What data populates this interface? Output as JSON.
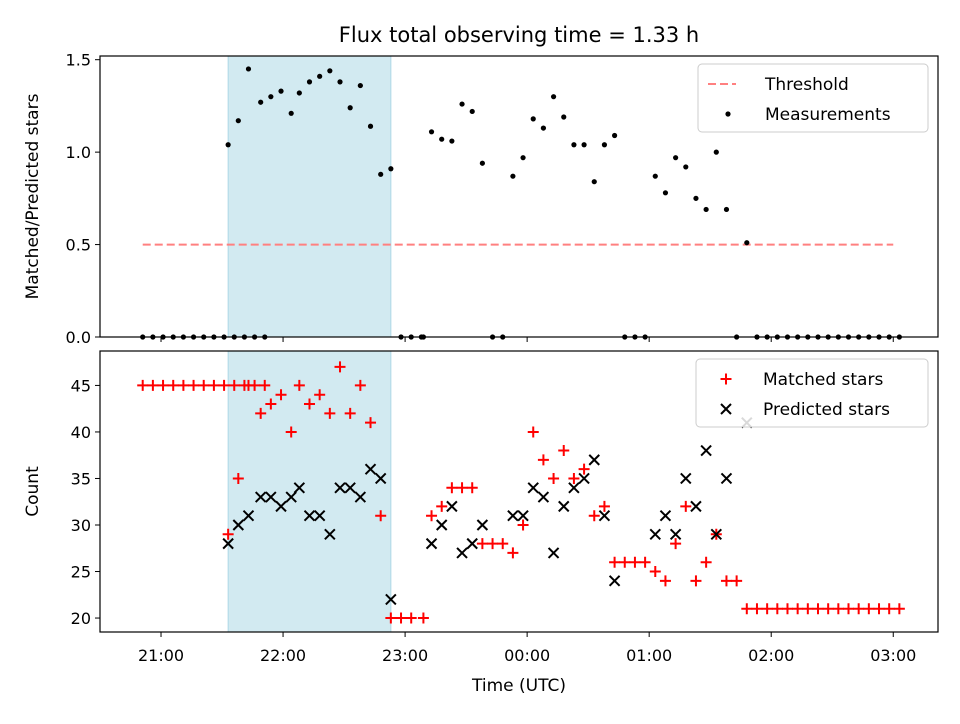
{
  "figure": {
    "title": "Flux total observing time = 1.33 h",
    "xlabel": "Time (UTC)"
  },
  "chart_data": [
    {
      "type": "scatter",
      "ylabel": "Matched/Predicted stars",
      "ylim": [
        0,
        1.52
      ],
      "yticks": [
        0.0,
        0.5,
        1.0,
        1.5
      ],
      "ytick_labels": [
        "0.0",
        "0.5",
        "1.0",
        "1.5"
      ],
      "xlim": [
        "20:30",
        "03:22"
      ],
      "xticks": [
        "21:00",
        "22:00",
        "23:00",
        "00:00",
        "01:00",
        "02:00",
        "03:00"
      ],
      "shaded_span": {
        "start": "21:33",
        "end": "22:53",
        "color": "#add8e6"
      },
      "legend": {
        "position": "top-right",
        "entries": [
          "Threshold",
          "Measurements"
        ]
      },
      "threshold": {
        "name": "Threshold",
        "value": 0.5,
        "x_start": "20:51",
        "x_end": "03:00",
        "color": "#ff8080",
        "style": "dashed"
      },
      "series": [
        {
          "name": "Measurements",
          "color": "#000000",
          "marker": "dot",
          "points": [
            [
              "20:51",
              0
            ],
            [
              "20:56",
              0
            ],
            [
              "21:01",
              0
            ],
            [
              "21:06",
              0
            ],
            [
              "21:11",
              0
            ],
            [
              "21:16",
              0
            ],
            [
              "21:21",
              0
            ],
            [
              "21:26",
              0
            ],
            [
              "21:31",
              0
            ],
            [
              "21:36",
              0
            ],
            [
              "21:41",
              0
            ],
            [
              "21:46",
              0
            ],
            [
              "21:51",
              0
            ],
            [
              "21:33",
              1.04
            ],
            [
              "21:38",
              1.17
            ],
            [
              "21:43",
              1.45
            ],
            [
              "21:49",
              1.27
            ],
            [
              "21:54",
              1.3
            ],
            [
              "21:59",
              1.33
            ],
            [
              "22:04",
              1.21
            ],
            [
              "22:08",
              1.32
            ],
            [
              "22:13",
              1.38
            ],
            [
              "22:18",
              1.41
            ],
            [
              "22:23",
              1.44
            ],
            [
              "22:28",
              1.38
            ],
            [
              "22:33",
              1.24
            ],
            [
              "22:38",
              1.36
            ],
            [
              "22:43",
              1.14
            ],
            [
              "22:48",
              0.88
            ],
            [
              "22:53",
              0.91
            ],
            [
              "22:58",
              0
            ],
            [
              "23:03",
              0
            ],
            [
              "23:08",
              0
            ],
            [
              "23:09",
              0
            ],
            [
              "23:13",
              1.11
            ],
            [
              "23:18",
              1.07
            ],
            [
              "23:23",
              1.06
            ],
            [
              "23:28",
              1.26
            ],
            [
              "23:33",
              1.22
            ],
            [
              "23:38",
              0.94
            ],
            [
              "23:43",
              0
            ],
            [
              "23:48",
              0
            ],
            [
              "23:53",
              0.87
            ],
            [
              "23:58",
              0.97
            ],
            [
              "00:03",
              1.18
            ],
            [
              "00:08",
              1.13
            ],
            [
              "00:13",
              1.3
            ],
            [
              "00:18",
              1.19
            ],
            [
              "00:23",
              1.04
            ],
            [
              "00:28",
              1.04
            ],
            [
              "00:33",
              0.84
            ],
            [
              "00:38",
              1.04
            ],
            [
              "00:43",
              1.09
            ],
            [
              "00:48",
              0
            ],
            [
              "00:53",
              0
            ],
            [
              "00:58",
              0
            ],
            [
              "01:03",
              0.87
            ],
            [
              "01:08",
              0.78
            ],
            [
              "01:13",
              0.97
            ],
            [
              "01:18",
              0.92
            ],
            [
              "01:23",
              0.75
            ],
            [
              "01:28",
              0.69
            ],
            [
              "01:33",
              1.0
            ],
            [
              "01:38",
              0.69
            ],
            [
              "01:43",
              0
            ],
            [
              "01:48",
              0.51
            ],
            [
              "01:53",
              0
            ],
            [
              "01:58",
              0
            ],
            [
              "02:03",
              0
            ],
            [
              "02:08",
              0
            ],
            [
              "02:13",
              0
            ],
            [
              "02:18",
              0
            ],
            [
              "02:23",
              0
            ],
            [
              "02:28",
              0
            ],
            [
              "02:33",
              0
            ],
            [
              "02:38",
              0
            ],
            [
              "02:43",
              0
            ],
            [
              "02:48",
              0
            ],
            [
              "02:53",
              0
            ],
            [
              "02:58",
              0
            ],
            [
              "03:03",
              0
            ]
          ]
        }
      ]
    },
    {
      "type": "scatter",
      "ylabel": "Count",
      "ylim": [
        18.5,
        48.7
      ],
      "yticks": [
        20,
        25,
        30,
        35,
        40,
        45
      ],
      "ytick_labels": [
        "20",
        "25",
        "30",
        "35",
        "40",
        "45"
      ],
      "xlim": [
        "20:30",
        "03:22"
      ],
      "xticks": [
        "21:00",
        "22:00",
        "23:00",
        "00:00",
        "01:00",
        "02:00",
        "03:00"
      ],
      "xtick_labels": [
        "21:00",
        "22:00",
        "23:00",
        "00:00",
        "01:00",
        "02:00",
        "03:00"
      ],
      "shaded_span": {
        "start": "21:33",
        "end": "22:53",
        "color": "#add8e6"
      },
      "legend": {
        "position": "top-right",
        "entries": [
          "Matched stars",
          "Predicted stars"
        ]
      },
      "series": [
        {
          "name": "Matched stars",
          "color": "#ff0000",
          "marker": "plus",
          "points": [
            [
              "20:51",
              45
            ],
            [
              "20:56",
              45
            ],
            [
              "21:01",
              45
            ],
            [
              "21:06",
              45
            ],
            [
              "21:11",
              45
            ],
            [
              "21:16",
              45
            ],
            [
              "21:21",
              45
            ],
            [
              "21:26",
              45
            ],
            [
              "21:31",
              45
            ],
            [
              "21:36",
              45
            ],
            [
              "21:41",
              45
            ],
            [
              "21:46",
              45
            ],
            [
              "21:51",
              45
            ],
            [
              "21:33",
              29
            ],
            [
              "21:38",
              35
            ],
            [
              "21:43",
              45
            ],
            [
              "21:49",
              42
            ],
            [
              "21:54",
              43
            ],
            [
              "21:59",
              44
            ],
            [
              "22:04",
              40
            ],
            [
              "22:08",
              45
            ],
            [
              "22:13",
              43
            ],
            [
              "22:18",
              44
            ],
            [
              "22:23",
              42
            ],
            [
              "22:28",
              47
            ],
            [
              "22:33",
              42
            ],
            [
              "22:38",
              45
            ],
            [
              "22:43",
              41
            ],
            [
              "22:48",
              31
            ],
            [
              "22:53",
              20
            ],
            [
              "22:58",
              20
            ],
            [
              "23:03",
              20
            ],
            [
              "23:09",
              20
            ],
            [
              "23:13",
              31
            ],
            [
              "23:18",
              32
            ],
            [
              "23:23",
              34
            ],
            [
              "23:28",
              34
            ],
            [
              "23:33",
              34
            ],
            [
              "23:38",
              28
            ],
            [
              "23:43",
              28
            ],
            [
              "23:48",
              28
            ],
            [
              "23:53",
              27
            ],
            [
              "23:58",
              30
            ],
            [
              "00:03",
              40
            ],
            [
              "00:08",
              37
            ],
            [
              "00:13",
              35
            ],
            [
              "00:18",
              38
            ],
            [
              "00:23",
              35
            ],
            [
              "00:28",
              36
            ],
            [
              "00:33",
              31
            ],
            [
              "00:38",
              32
            ],
            [
              "00:43",
              26
            ],
            [
              "00:48",
              26
            ],
            [
              "00:53",
              26
            ],
            [
              "00:58",
              26
            ],
            [
              "01:03",
              25
            ],
            [
              "01:08",
              24
            ],
            [
              "01:13",
              28
            ],
            [
              "01:18",
              32
            ],
            [
              "01:23",
              24
            ],
            [
              "01:28",
              26
            ],
            [
              "01:33",
              29
            ],
            [
              "01:38",
              24
            ],
            [
              "01:43",
              24
            ],
            [
              "01:48",
              21
            ],
            [
              "01:53",
              21
            ],
            [
              "01:58",
              21
            ],
            [
              "02:03",
              21
            ],
            [
              "02:08",
              21
            ],
            [
              "02:13",
              21
            ],
            [
              "02:18",
              21
            ],
            [
              "02:23",
              21
            ],
            [
              "02:28",
              21
            ],
            [
              "02:33",
              21
            ],
            [
              "02:38",
              21
            ],
            [
              "02:43",
              21
            ],
            [
              "02:48",
              21
            ],
            [
              "02:53",
              21
            ],
            [
              "02:58",
              21
            ],
            [
              "03:03",
              21
            ]
          ]
        },
        {
          "name": "Predicted stars",
          "color": "#000000",
          "marker": "x",
          "points": [
            [
              "21:33",
              28
            ],
            [
              "21:38",
              30
            ],
            [
              "21:43",
              31
            ],
            [
              "21:49",
              33
            ],
            [
              "21:54",
              33
            ],
            [
              "21:59",
              32
            ],
            [
              "22:04",
              33
            ],
            [
              "22:08",
              34
            ],
            [
              "22:13",
              31
            ],
            [
              "22:18",
              31
            ],
            [
              "22:23",
              29
            ],
            [
              "22:28",
              34
            ],
            [
              "22:33",
              34
            ],
            [
              "22:38",
              33
            ],
            [
              "22:43",
              36
            ],
            [
              "22:48",
              35
            ],
            [
              "22:53",
              22
            ],
            [
              "23:13",
              28
            ],
            [
              "23:18",
              30
            ],
            [
              "23:23",
              32
            ],
            [
              "23:28",
              27
            ],
            [
              "23:33",
              28
            ],
            [
              "23:38",
              30
            ],
            [
              "23:53",
              31
            ],
            [
              "23:58",
              31
            ],
            [
              "00:03",
              34
            ],
            [
              "00:08",
              33
            ],
            [
              "00:13",
              27
            ],
            [
              "00:18",
              32
            ],
            [
              "00:23",
              34
            ],
            [
              "00:28",
              35
            ],
            [
              "00:33",
              37
            ],
            [
              "00:38",
              31
            ],
            [
              "00:43",
              24
            ],
            [
              "01:03",
              29
            ],
            [
              "01:08",
              31
            ],
            [
              "01:13",
              29
            ],
            [
              "01:18",
              35
            ],
            [
              "01:23",
              32
            ],
            [
              "01:28",
              38
            ],
            [
              "01:33",
              29
            ],
            [
              "01:38",
              35
            ],
            [
              "01:48",
              41
            ]
          ]
        }
      ]
    }
  ]
}
